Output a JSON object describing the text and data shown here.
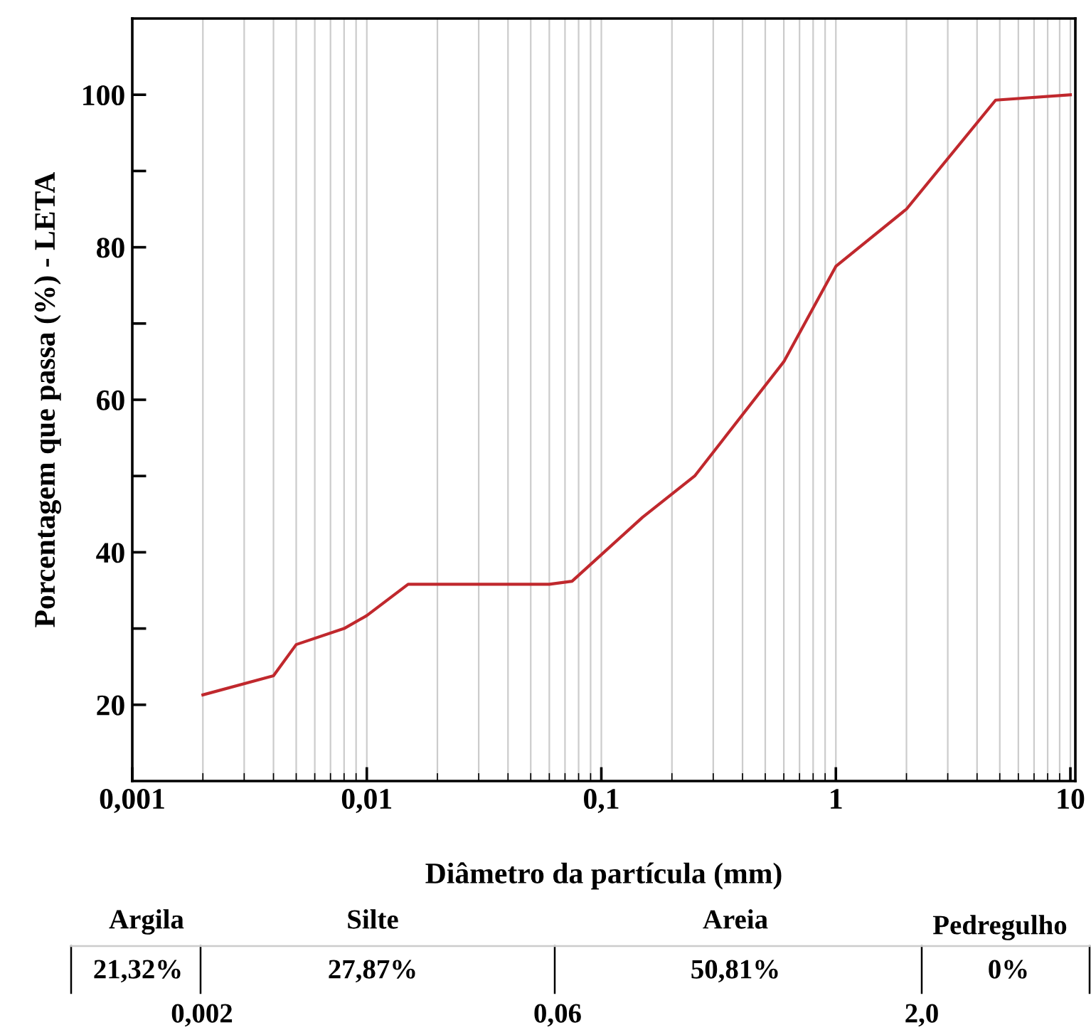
{
  "chart_data": {
    "type": "line",
    "xlabel": "Diâmetro da partícula (mm)",
    "ylabel": "Porcentagem que passa (%) - LETA",
    "log": "x",
    "grid": "x",
    "marker": "none",
    "line_style": "solid",
    "xlim": [
      0.001,
      10.5
    ],
    "xticks": [
      {
        "value": 0.001,
        "label": "0,001"
      },
      {
        "value": 0.01,
        "label": "0,01"
      },
      {
        "value": 0.1,
        "label": "0,1"
      },
      1,
      10
    ],
    "ylim": [
      10,
      110
    ],
    "yticks": [
      20,
      {
        "value": 30,
        "label": null
      },
      40,
      {
        "value": 50,
        "label": null
      },
      60,
      {
        "value": 70,
        "label": null
      },
      80,
      {
        "value": 90,
        "label": null
      },
      100
    ],
    "series": [
      {
        "color": "#c0282d",
        "x": [
          0.002,
          0.004,
          0.005,
          0.008,
          0.01,
          0.015,
          0.06,
          0.075,
          0.15,
          0.25,
          0.6,
          1,
          2,
          4.8,
          10
        ],
        "values": [
          21.3,
          23.8,
          27.9,
          30,
          31.7,
          35.8,
          35.8,
          36.2,
          44.6,
          50,
          65,
          77.5,
          85,
          99.3,
          100
        ]
      }
    ],
    "annotations": [
      "Argila",
      "Silte",
      "Areia",
      "Pedregulho",
      "21,32%",
      "27,87%",
      "50,81%",
      "0%",
      "0,002",
      "0,06",
      "2,0"
    ]
  }
}
